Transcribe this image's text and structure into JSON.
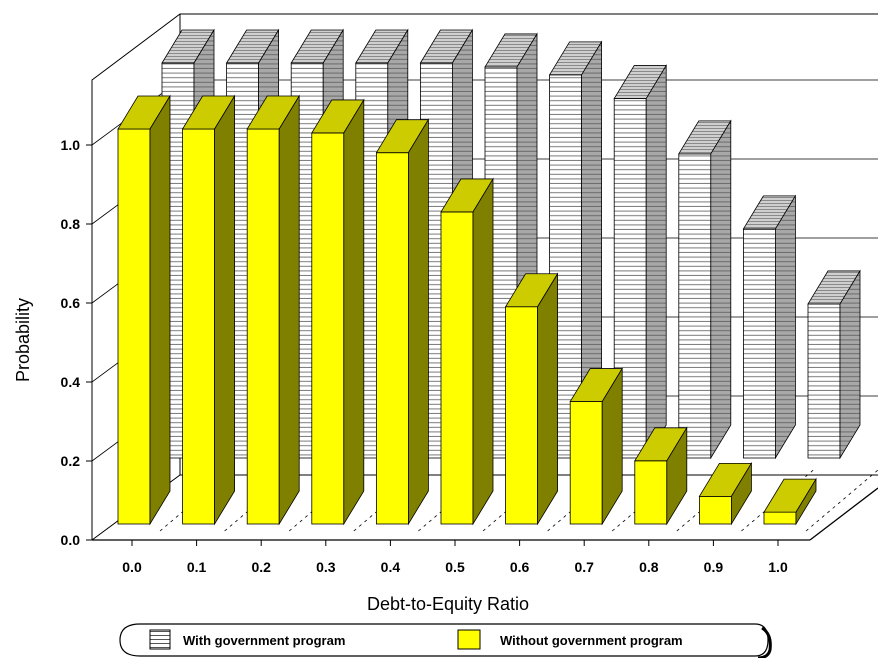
{
  "chart_data": {
    "type": "bar",
    "title": "",
    "xlabel": "Debt-to-Equity Ratio",
    "ylabel": "Probability",
    "categories": [
      "0.0",
      "0.1",
      "0.2",
      "0.3",
      "0.4",
      "0.5",
      "0.6",
      "0.7",
      "0.8",
      "0.9",
      "1.0"
    ],
    "yticks": [
      "0.0",
      "0.2",
      "0.4",
      "0.6",
      "0.8",
      "1.0"
    ],
    "ylim": [
      0,
      1.2
    ],
    "grid": true,
    "legend": "bottom",
    "series": [
      {
        "name": "With government program",
        "values": [
          1.0,
          1.0,
          1.0,
          1.0,
          1.0,
          0.99,
          0.97,
          0.91,
          0.77,
          0.58,
          0.39
        ],
        "color": "#ffffff",
        "pattern": "horizontal-stripes"
      },
      {
        "name": "Without government program",
        "values": [
          1.0,
          1.0,
          1.0,
          0.99,
          0.94,
          0.79,
          0.55,
          0.31,
          0.16,
          0.07,
          0.03
        ],
        "color": "#ffff00"
      }
    ]
  },
  "colors": {
    "front_top": "#cccc00",
    "front_side": "#808000",
    "back_top": "#c8c8c8",
    "back_side": "#a0a0a0",
    "stripe": "#7a7a7a"
  }
}
